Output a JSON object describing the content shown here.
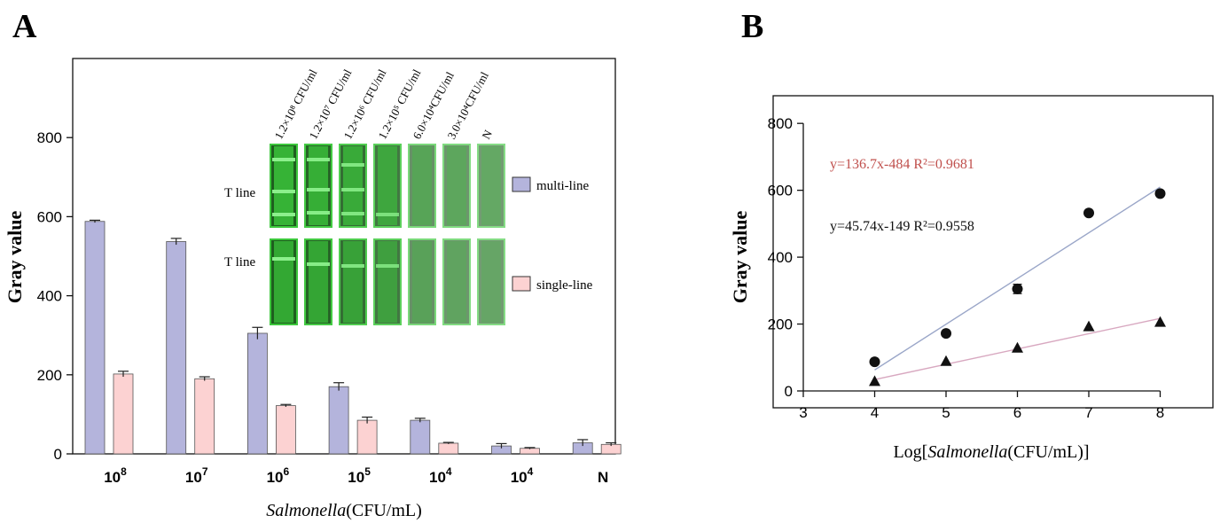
{
  "panel_a": {
    "label": "A",
    "legend": {
      "multi": "multi-line",
      "single": "single-line"
    },
    "strip_labels": [
      "1.2×10⁸ CFU/ml",
      "1.2×10⁷ CFU/ml",
      "1.2×10⁶ CFU/ml",
      "1.2×10⁵ CFU/ml",
      "6.0×10⁴CFU/ml",
      "3.0×10⁴CFU/ml",
      "N"
    ],
    "row_labels": [
      "T line",
      "T line"
    ],
    "colors": {
      "multi": "#b4b4dc",
      "single": "#fcd2d2",
      "strip_dark": "#1e5e1e",
      "strip_bright": "#3cc83c"
    }
  },
  "panel_b": {
    "label": "B",
    "eq_multi": "y=136.7x-484    R²=0.9681",
    "eq_single": "y=45.74x-149    R²=0.9558",
    "colors": {
      "eq_multi": "#c0504d",
      "line_multi": "#9aa6c8",
      "line_single": "#d8a8c0"
    }
  },
  "chart_data": [
    {
      "type": "bar",
      "title": "",
      "xlabel_italic": "Salmonella",
      "xlabel_rest": "(CFU/mL)",
      "ylabel": "Gray value",
      "ylim": [
        0,
        1000
      ],
      "yticks": [
        0,
        200,
        400,
        600,
        800
      ],
      "categories": [
        "10^8",
        "10^7",
        "10^6",
        "10^5",
        "10^4",
        "10^4",
        "N"
      ],
      "category_labels": [
        {
          "base": "10",
          "exp": "8"
        },
        {
          "base": "10",
          "exp": "7"
        },
        {
          "base": "10",
          "exp": "6"
        },
        {
          "base": "10",
          "exp": "5"
        },
        {
          "base": "10",
          "exp": "4"
        },
        {
          "base": "10",
          "exp": "4"
        },
        {
          "base": "N",
          "exp": ""
        }
      ],
      "series": [
        {
          "name": "multi-line",
          "values": [
            588,
            537,
            305,
            170,
            85,
            20,
            28
          ],
          "errors": [
            3,
            8,
            15,
            10,
            5,
            6,
            8
          ]
        },
        {
          "name": "single-line",
          "values": [
            202,
            190,
            122,
            85,
            27,
            14,
            24
          ],
          "errors": [
            7,
            5,
            3,
            8,
            2,
            2,
            4
          ]
        }
      ]
    },
    {
      "type": "scatter",
      "title": "",
      "xlabel_pre": "Log[",
      "xlabel_italic": "Salmonella",
      "xlabel_post": "(CFU/mL)]",
      "ylabel": "Gray value",
      "xlim": [
        3,
        8.8
      ],
      "ylim": [
        0,
        880
      ],
      "xticks": [
        3,
        4,
        5,
        6,
        7,
        8
      ],
      "yticks": [
        0,
        200,
        400,
        600,
        800
      ],
      "series": [
        {
          "name": "multi-line",
          "marker": "circle",
          "x": [
            4,
            5,
            6,
            7,
            8
          ],
          "y": [
            87,
            172,
            305,
            532,
            590
          ],
          "errors": [
            0,
            0,
            14,
            0,
            0
          ],
          "fit": {
            "slope": 136.7,
            "intercept": -484
          }
        },
        {
          "name": "single-line",
          "marker": "triangle",
          "x": [
            4,
            5,
            6,
            7,
            8
          ],
          "y": [
            28,
            88,
            128,
            192,
            205
          ],
          "errors": [
            0,
            0,
            0,
            0,
            0
          ],
          "fit": {
            "slope": 45.74,
            "intercept": -149
          }
        }
      ]
    }
  ]
}
